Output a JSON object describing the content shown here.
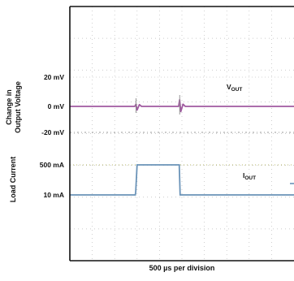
{
  "chart_data": {
    "type": "line",
    "title": "",
    "xlabel": "500 µs per division",
    "ylabel_groups": [
      {
        "lines": [
          "Change in",
          "Output Voltage"
        ]
      },
      {
        "lines": [
          "Load Current"
        ]
      }
    ],
    "grid": true,
    "x_divisions": 10,
    "y_divisions": 8,
    "tick_labels": [
      {
        "text": "20 mV",
        "level": "v_plus"
      },
      {
        "text": "0 mV",
        "level": "v_zero"
      },
      {
        "text": "-20 mV",
        "level": "v_minus"
      },
      {
        "text": "500 mA",
        "level": "i_high"
      },
      {
        "text": "10 mA",
        "level": "i_low"
      }
    ],
    "series": [
      {
        "name": "VOUT",
        "color": "#a05aa0",
        "x_div": [
          0,
          2.9,
          2.95,
          3.0,
          3.1,
          3.2,
          4.85,
          4.9,
          4.95,
          5.05,
          5.15,
          10
        ],
        "y_mV": [
          0,
          0,
          1.5,
          -2.5,
          1.2,
          0,
          0,
          4.5,
          -3.5,
          1.5,
          0,
          0
        ]
      },
      {
        "name": "IOUT",
        "color": "#6a93b8",
        "x_div": [
          0,
          2.92,
          2.94,
          3.0,
          4.88,
          4.92,
          10
        ],
        "y_mA": [
          10,
          10,
          60,
          500,
          500,
          10,
          10
        ]
      }
    ],
    "annotations": [
      {
        "base": "V",
        "sub": "OUT",
        "series": "VOUT"
      },
      {
        "base": "I",
        "sub": "OUT",
        "series": "IOUT"
      }
    ]
  }
}
